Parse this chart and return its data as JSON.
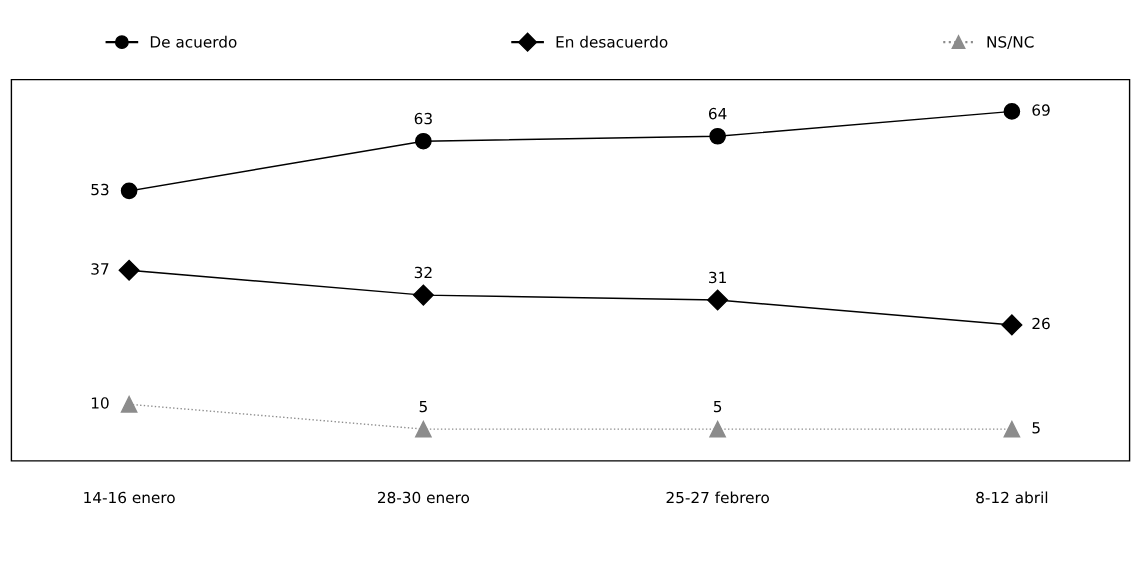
{
  "chart_data": {
    "type": "line",
    "categories": [
      "14-16 enero",
      "28-30 enero",
      "25-27 febrero",
      "8-12 abril"
    ],
    "series": [
      {
        "name": "De acuerdo",
        "color": "#000000",
        "marker": "circle",
        "values": [
          53,
          63,
          64,
          69
        ]
      },
      {
        "name": "En desacuerdo",
        "color": "#000000",
        "marker": "diamond",
        "values": [
          37,
          32,
          31,
          26
        ]
      },
      {
        "name": "NS/NC",
        "color": "#8c8c8c",
        "marker": "triangle",
        "line_style": "dotted",
        "values": [
          10,
          5,
          5,
          5
        ]
      }
    ],
    "data_labels": true,
    "legend": "top",
    "grid": false,
    "tick_labels": "x"
  }
}
